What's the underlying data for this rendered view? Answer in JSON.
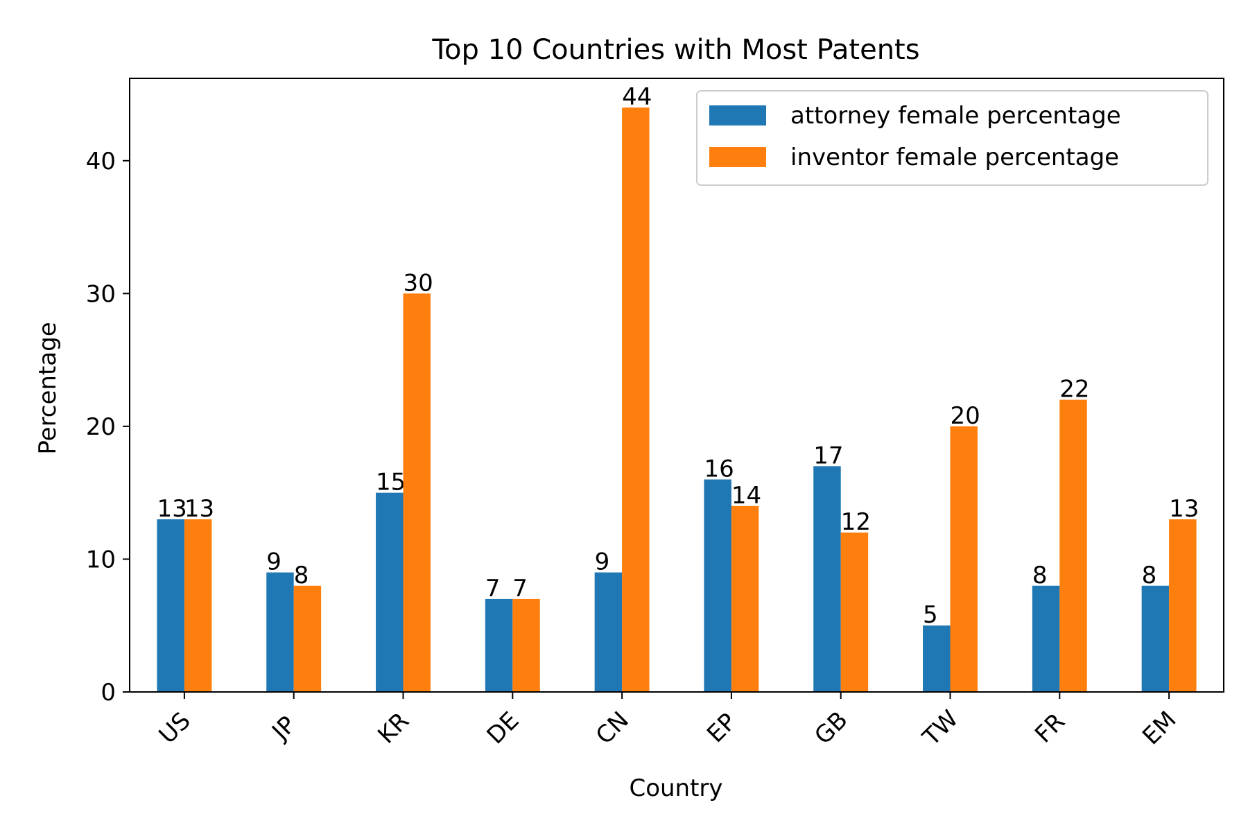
{
  "chart_data": {
    "type": "bar",
    "title": "Top 10 Countries with Most Patents",
    "xlabel": "Country",
    "ylabel": "Percentage",
    "categories": [
      "US",
      "JP",
      "KR",
      "DE",
      "CN",
      "EP",
      "GB",
      "TW",
      "FR",
      "EM"
    ],
    "series": [
      {
        "name": "attorney female percentage",
        "color": "#1f77b4",
        "values": [
          13,
          9,
          15,
          7,
          9,
          16,
          17,
          5,
          8,
          8
        ]
      },
      {
        "name": "inventor female percentage",
        "color": "#ff7f0e",
        "values": [
          13,
          8,
          30,
          7,
          44,
          14,
          12,
          20,
          22,
          13
        ]
      }
    ],
    "ylim": [
      0,
      46.2
    ],
    "yticks": [
      0,
      10,
      20,
      30,
      40
    ],
    "grid": false,
    "legend_position": "top-right"
  }
}
